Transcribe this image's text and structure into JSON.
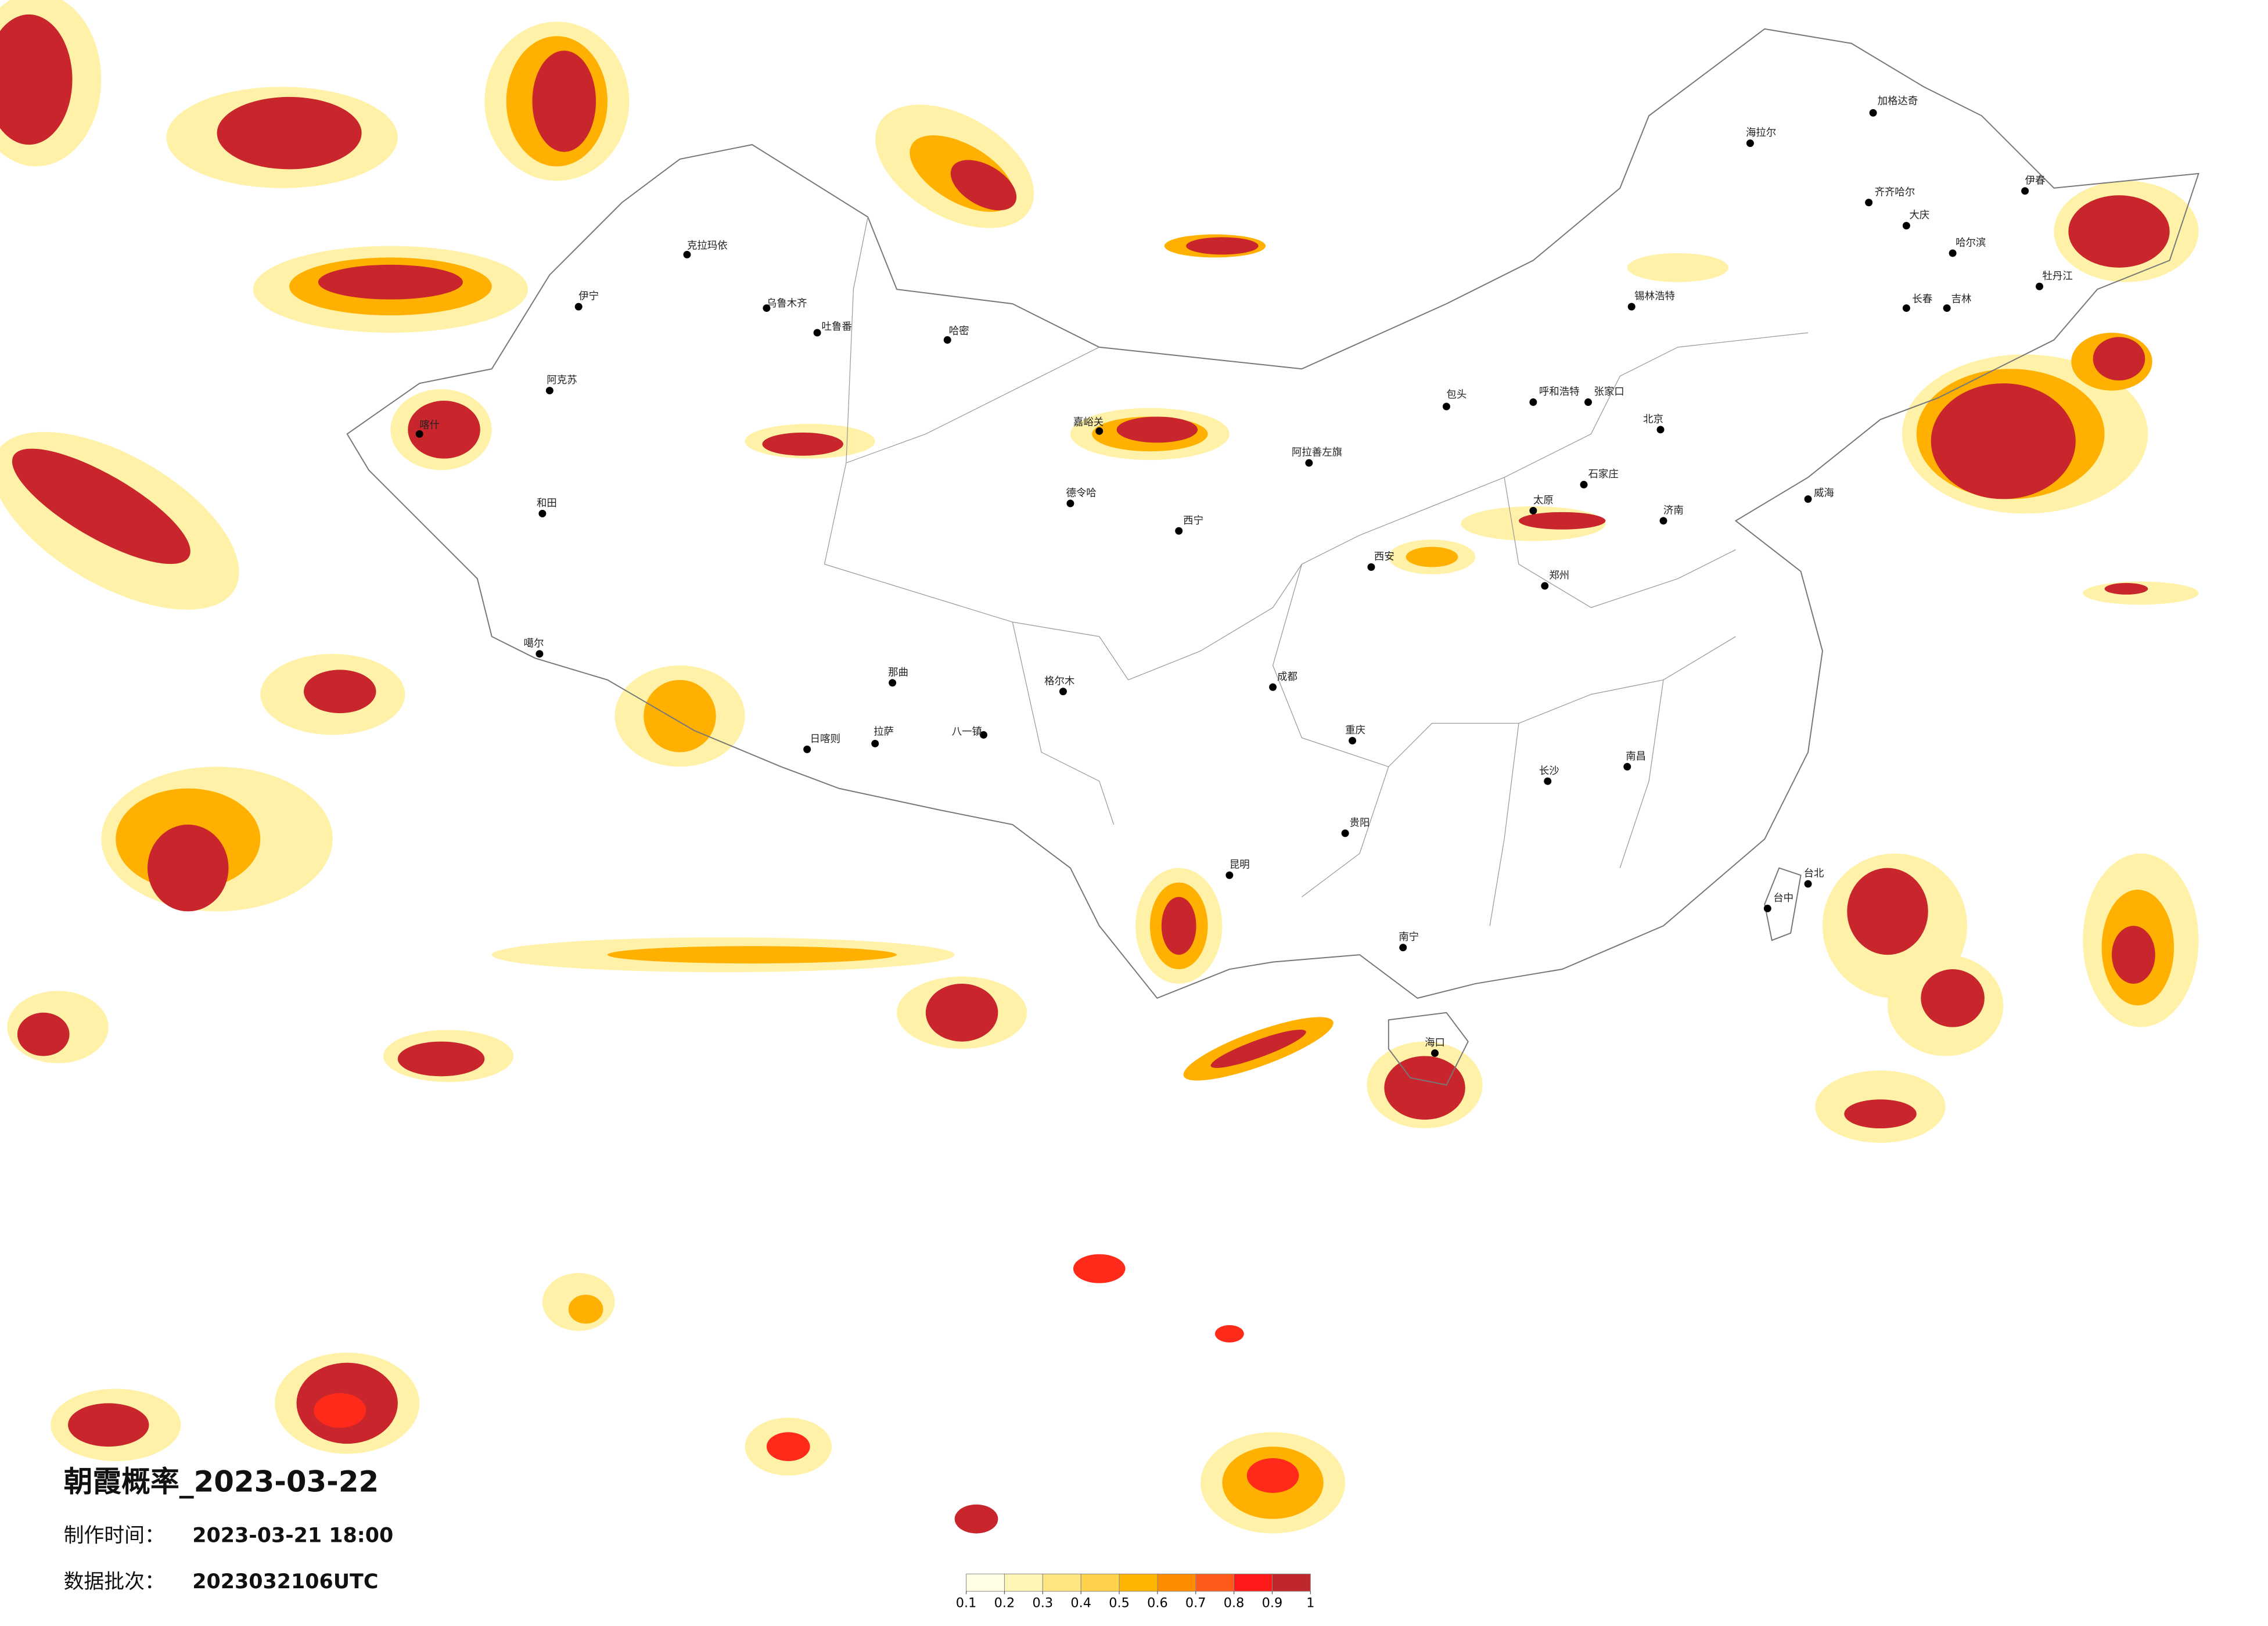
{
  "title": "朝霞概率_2023-03-22",
  "made_label": "制作时间：",
  "made_value": "2023-03-21 18:00",
  "batch_label": "数据批次：",
  "batch_value": "2023032106UTC",
  "colorbar": {
    "ticks": [
      0.1,
      0.2,
      0.3,
      0.4,
      0.5,
      0.6,
      0.7,
      0.8,
      0.9,
      1
    ],
    "colors": [
      "#fffde3",
      "#fff5b5",
      "#ffe680",
      "#ffd24d",
      "#ffb400",
      "#ff8c00",
      "#ff5a1a",
      "#ff1a1a",
      "#c0272d"
    ]
  },
  "cities": [
    "海拉尔",
    "加格达奇",
    "齐齐哈尔",
    "大庆",
    "哈尔滨",
    "长春",
    "吉林",
    "伊春",
    "牡丹江",
    "锡林浩特",
    "呼和浩特",
    "包头",
    "张家口",
    "北京",
    "石家庄",
    "太原",
    "济南",
    "郑州",
    "西安",
    "西宁",
    "阿拉善左旗",
    "嘉峪关",
    "德令哈",
    "长沙",
    "南昌",
    "南宁",
    "海口",
    "昆明",
    "贵阳",
    "成都",
    "重庆",
    "拉萨",
    "日喀则",
    "八一镇",
    "那曲",
    "格尔木",
    "乌鲁木齐",
    "吐鲁番",
    "哈密",
    "克拉玛依",
    "伊宁",
    "阿克苏",
    "喀什",
    "和田",
    "噶尔",
    "台北",
    "台中",
    "威海"
  ]
}
